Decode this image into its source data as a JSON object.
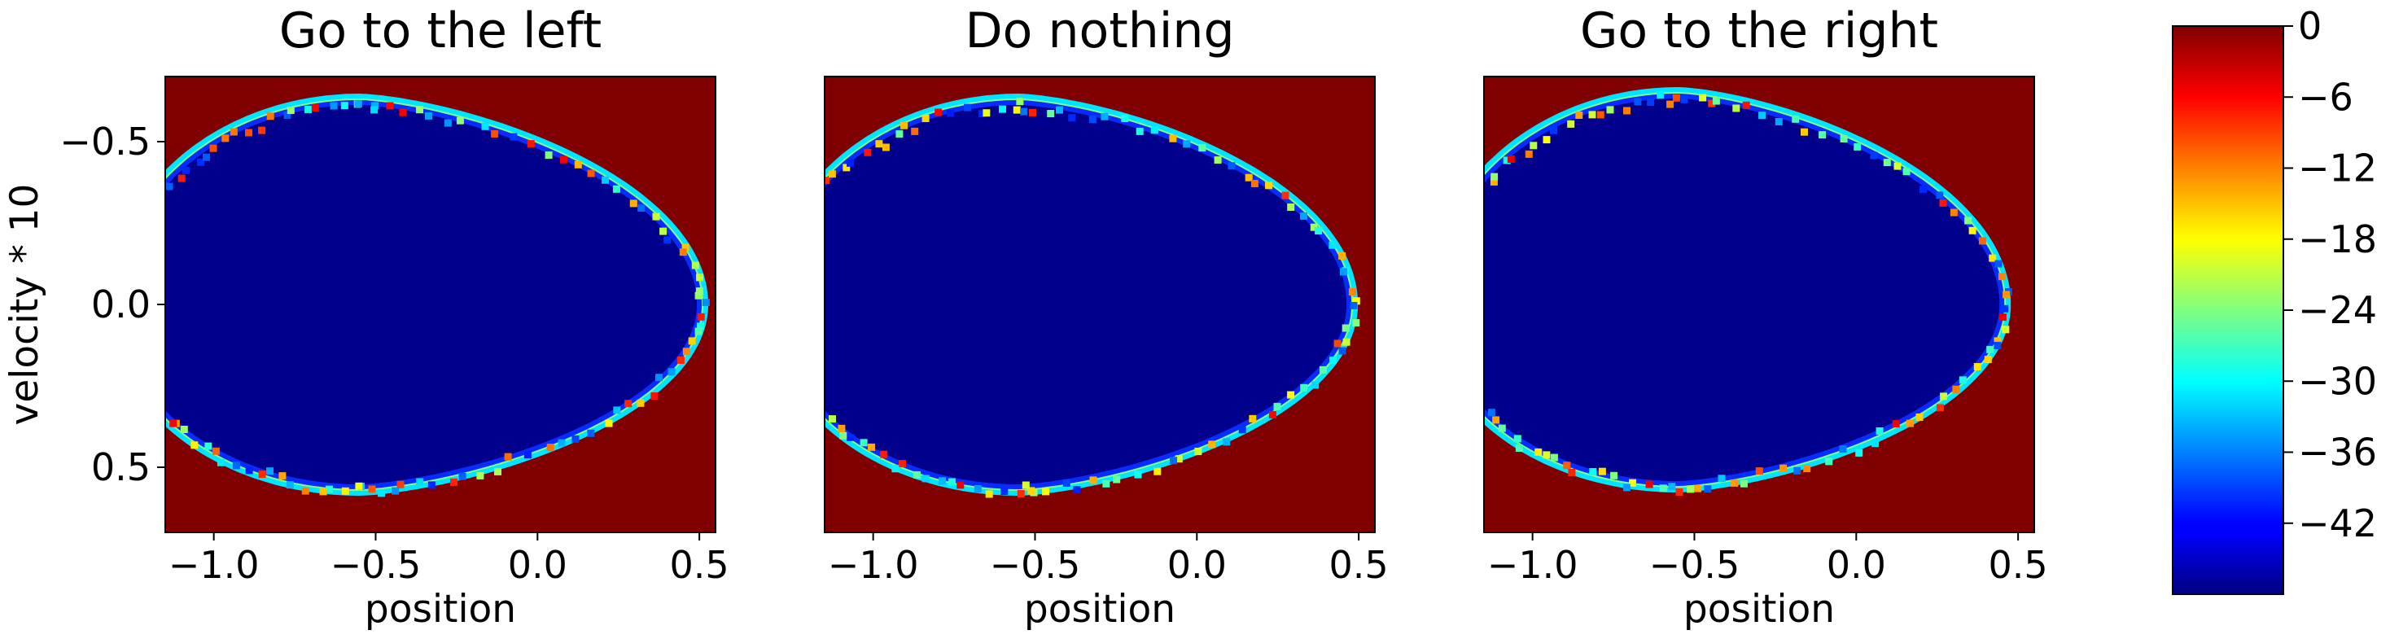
{
  "chart_data": [
    {
      "type": "heatmap",
      "title": "Go to the left",
      "xlabel": "position",
      "ylabel": "velocity * 10",
      "xlim": [
        -1.15,
        0.55
      ],
      "ylim": [
        -0.7,
        0.7
      ],
      "xticks": [
        -1.0,
        -0.5,
        0.0,
        0.5
      ],
      "xtick_labels": [
        "−1.0",
        "−0.5",
        "0.0",
        "0.5"
      ],
      "yticks": [
        -0.5,
        0.0,
        0.5
      ],
      "ytick_labels": [
        "−0.5",
        "0.0",
        "0.5"
      ],
      "y_inverted": true,
      "region": {
        "description_values": "inside region ≈ -45, boundary -40 to -5, outside 0",
        "center": [
          -0.55,
          0.0
        ],
        "right_tip": 0.5,
        "left_edge": -1.15,
        "top": -0.62,
        "bottom": 0.56,
        "inside_value": -45,
        "outside_value": 0
      }
    },
    {
      "type": "heatmap",
      "title": "Do nothing",
      "xlabel": "position",
      "xlim": [
        -1.15,
        0.55
      ],
      "ylim": [
        -0.7,
        0.7
      ],
      "xticks": [
        -1.0,
        -0.5,
        0.0,
        0.5
      ],
      "xtick_labels": [
        "−1.0",
        "−0.5",
        "0.0",
        "0.5"
      ],
      "y_inverted": true,
      "region": {
        "center": [
          -0.55,
          0.0
        ],
        "right_tip": 0.47,
        "left_edge": -1.15,
        "top": -0.62,
        "bottom": 0.56,
        "inside_value": -45,
        "outside_value": 0
      }
    },
    {
      "type": "heatmap",
      "title": "Go to the right",
      "xlabel": "position",
      "xlim": [
        -1.15,
        0.55
      ],
      "ylim": [
        -0.7,
        0.7
      ],
      "xticks": [
        -1.0,
        -0.5,
        0.0,
        0.5
      ],
      "xtick_labels": [
        "−1.0",
        "−0.5",
        "0.0",
        "0.5"
      ],
      "y_inverted": true,
      "region": {
        "center": [
          -0.55,
          0.0
        ],
        "right_tip": 0.45,
        "left_edge": -1.15,
        "top": -0.64,
        "bottom": 0.55,
        "inside_value": -45,
        "outside_value": 0
      }
    }
  ],
  "colorbar": {
    "colormap": "jet",
    "range": [
      -48,
      0
    ],
    "ticks": [
      0,
      -6,
      -12,
      -18,
      -24,
      -30,
      -36,
      -42
    ],
    "tick_labels": [
      "0",
      "−6",
      "−12",
      "−18",
      "−24",
      "−30",
      "−36",
      "−42"
    ]
  },
  "colors": {
    "outside_region": "#800000",
    "inside_region": "#00008c"
  }
}
